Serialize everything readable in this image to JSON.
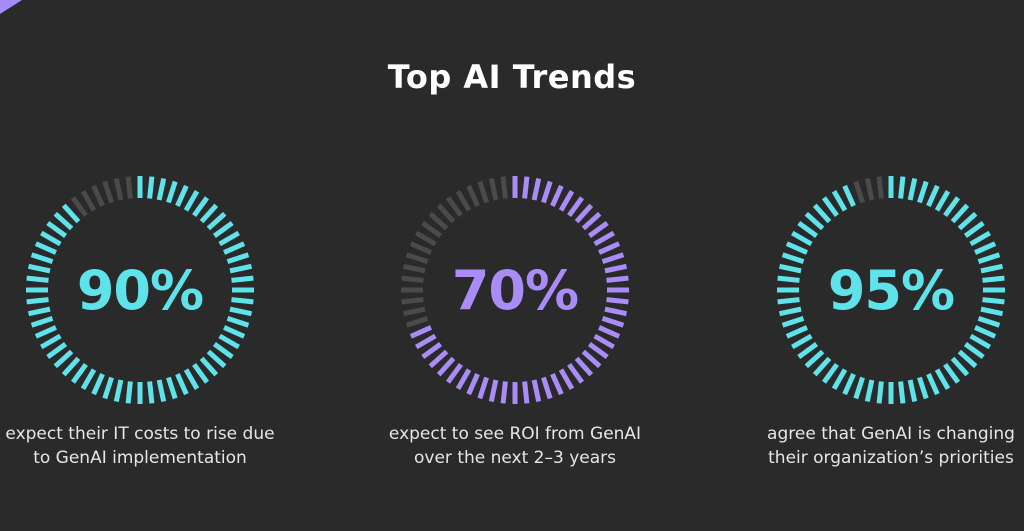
{
  "title": "Top AI Trends",
  "colors": {
    "background": "#2a2a2a",
    "track": "#4a4a4a",
    "teal": "#5fe3ea",
    "purple": "#a98cf6"
  },
  "chart_data": {
    "type": "radial-progress",
    "title": "Top AI Trends",
    "items": [
      {
        "value": 90,
        "label": "90%",
        "caption_line1": "expect their IT costs to rise due",
        "caption_line2": "to GenAI implementation",
        "color": "#5fe3ea"
      },
      {
        "value": 70,
        "label": "70%",
        "caption_line1": "expect to see ROI from GenAI",
        "caption_line2": "over the next 2–3 years",
        "color": "#a98cf6"
      },
      {
        "value": 95,
        "label": "95%",
        "caption_line1": "agree that GenAI is changing",
        "caption_line2": "their organization’s priorities",
        "color": "#5fe3ea"
      }
    ]
  }
}
